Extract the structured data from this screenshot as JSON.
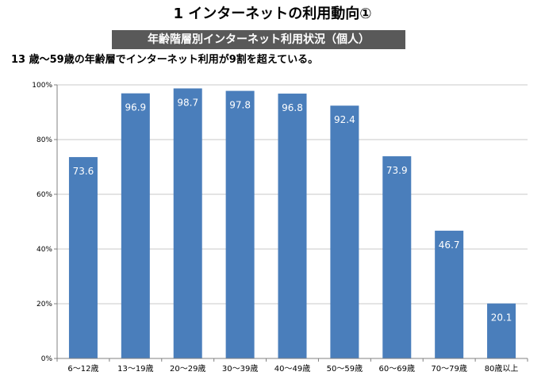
{
  "header": {
    "title": "1 インターネットの利用動向①",
    "banner": "年齢階層別インターネット利用状況（個人）",
    "subtitle": "13 歳～59歳の年齢層でインターネット利用が9割を超えている。"
  },
  "chart_data": {
    "type": "bar",
    "title": "",
    "xlabel": "",
    "ylabel": "",
    "categories": [
      "6～12歳",
      "13～19歳",
      "20～29歳",
      "30～39歳",
      "40～49歳",
      "50～59歳",
      "60～69歳",
      "70～79歳",
      "80歳以上"
    ],
    "values": [
      73.6,
      96.9,
      98.7,
      97.8,
      96.8,
      92.4,
      73.9,
      46.7,
      20.1
    ],
    "data_labels": [
      "73.6",
      "96.9",
      "98.7",
      "97.8",
      "96.8",
      "92.4",
      "73.9",
      "46.7",
      "20.1"
    ],
    "ylim": [
      0,
      100
    ],
    "yticks": [
      0,
      20,
      40,
      60,
      80,
      100
    ],
    "ytick_labels": [
      "0%",
      "20%",
      "40%",
      "60%",
      "80%",
      "100%"
    ],
    "grid": true,
    "bar_color": "#4A7EBB",
    "grid_color": "#C8C8C8",
    "axis_color": "#808080"
  }
}
